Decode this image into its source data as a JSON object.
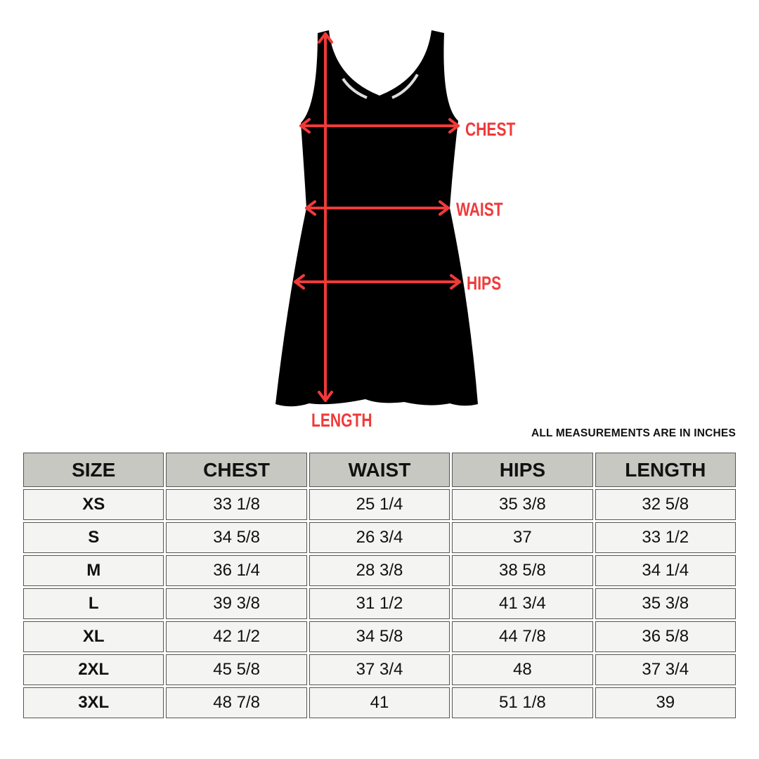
{
  "figure": {
    "labels": {
      "chest": "CHEST",
      "waist": "WAIST",
      "hips": "HIPS",
      "length": "LENGTH"
    },
    "arrow_color": "#f03a3a",
    "garment_color": "#000000"
  },
  "note": "ALL MEASUREMENTS ARE IN INCHES",
  "table": {
    "headers": [
      "SIZE",
      "CHEST",
      "WAIST",
      "HIPS",
      "LENGTH"
    ],
    "rows": [
      [
        "XS",
        "33 1/8",
        "25 1/4",
        "35 3/8",
        "32 5/8"
      ],
      [
        "S",
        "34 5/8",
        "26 3/4",
        "37",
        "33 1/2"
      ],
      [
        "M",
        "36 1/4",
        "28 3/8",
        "38 5/8",
        "34 1/4"
      ],
      [
        "L",
        "39 3/8",
        "31 1/2",
        "41 3/4",
        "35 3/8"
      ],
      [
        "XL",
        "42 1/2",
        "34 5/8",
        "44 7/8",
        "36 5/8"
      ],
      [
        "2XL",
        "45 5/8",
        "37 3/4",
        "48",
        "37 3/4"
      ],
      [
        "3XL",
        "48 7/8",
        "41",
        "51 1/8",
        "39"
      ]
    ],
    "header_bg": "#c8c8c2",
    "cell_bg": "#f4f4f2"
  }
}
